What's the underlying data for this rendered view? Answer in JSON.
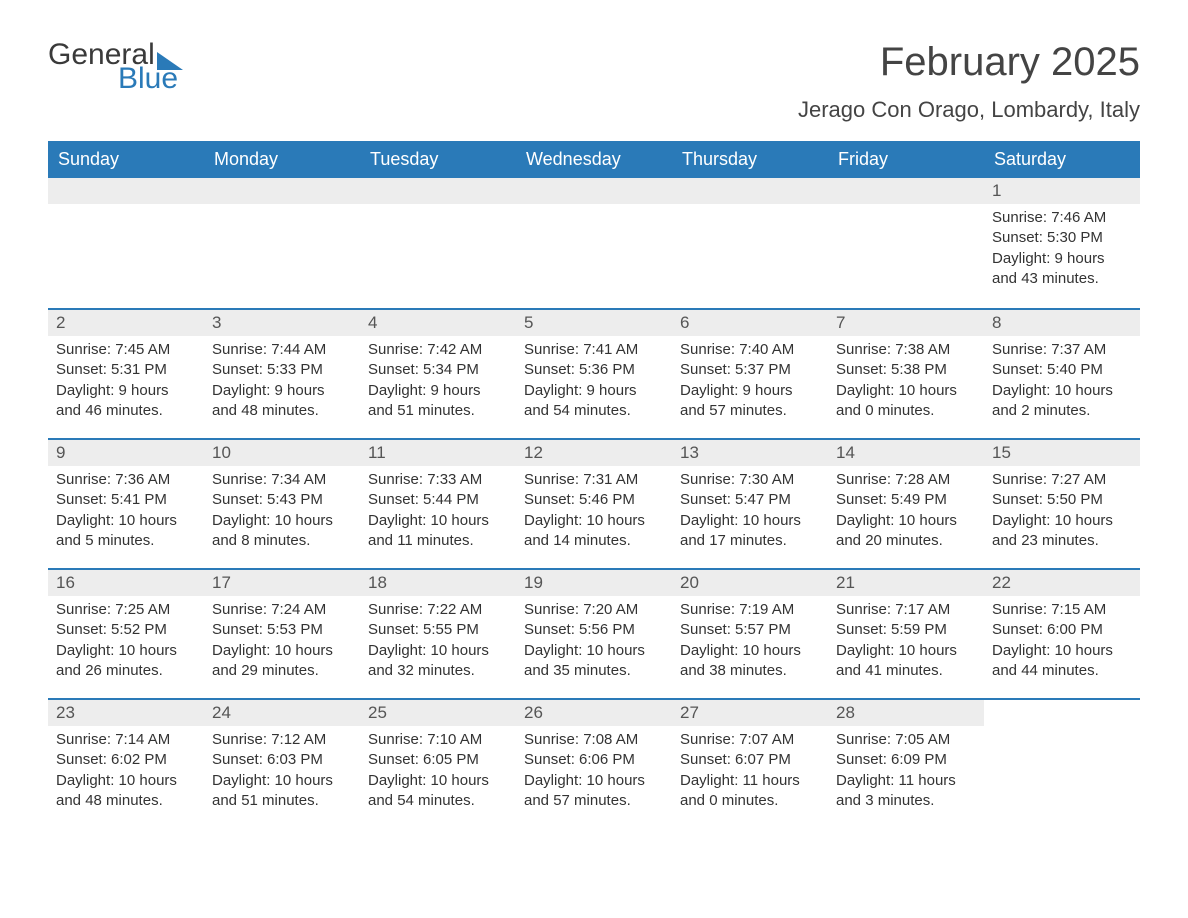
{
  "brand": {
    "general": "General",
    "blue": "Blue",
    "flag_color": "#2a7ab8"
  },
  "title": "February 2025",
  "location": "Jerago Con Orago, Lombardy, Italy",
  "colors": {
    "header_bg": "#2a7ab8",
    "header_text": "#ffffff",
    "daynum_bg": "#ededed",
    "week_border": "#2a7ab8",
    "text": "#333333",
    "title_text": "#444444"
  },
  "dayNames": [
    "Sunday",
    "Monday",
    "Tuesday",
    "Wednesday",
    "Thursday",
    "Friday",
    "Saturday"
  ],
  "layout": {
    "first_weekday_index": 6,
    "num_days": 28
  },
  "labels": {
    "sunrise": "Sunrise",
    "sunset": "Sunset",
    "daylight": "Daylight"
  },
  "days": [
    {
      "n": 1,
      "sunrise": "7:46 AM",
      "sunset": "5:30 PM",
      "daylight": "9 hours and 43 minutes."
    },
    {
      "n": 2,
      "sunrise": "7:45 AM",
      "sunset": "5:31 PM",
      "daylight": "9 hours and 46 minutes."
    },
    {
      "n": 3,
      "sunrise": "7:44 AM",
      "sunset": "5:33 PM",
      "daylight": "9 hours and 48 minutes."
    },
    {
      "n": 4,
      "sunrise": "7:42 AM",
      "sunset": "5:34 PM",
      "daylight": "9 hours and 51 minutes."
    },
    {
      "n": 5,
      "sunrise": "7:41 AM",
      "sunset": "5:36 PM",
      "daylight": "9 hours and 54 minutes."
    },
    {
      "n": 6,
      "sunrise": "7:40 AM",
      "sunset": "5:37 PM",
      "daylight": "9 hours and 57 minutes."
    },
    {
      "n": 7,
      "sunrise": "7:38 AM",
      "sunset": "5:38 PM",
      "daylight": "10 hours and 0 minutes."
    },
    {
      "n": 8,
      "sunrise": "7:37 AM",
      "sunset": "5:40 PM",
      "daylight": "10 hours and 2 minutes."
    },
    {
      "n": 9,
      "sunrise": "7:36 AM",
      "sunset": "5:41 PM",
      "daylight": "10 hours and 5 minutes."
    },
    {
      "n": 10,
      "sunrise": "7:34 AM",
      "sunset": "5:43 PM",
      "daylight": "10 hours and 8 minutes."
    },
    {
      "n": 11,
      "sunrise": "7:33 AM",
      "sunset": "5:44 PM",
      "daylight": "10 hours and 11 minutes."
    },
    {
      "n": 12,
      "sunrise": "7:31 AM",
      "sunset": "5:46 PM",
      "daylight": "10 hours and 14 minutes."
    },
    {
      "n": 13,
      "sunrise": "7:30 AM",
      "sunset": "5:47 PM",
      "daylight": "10 hours and 17 minutes."
    },
    {
      "n": 14,
      "sunrise": "7:28 AM",
      "sunset": "5:49 PM",
      "daylight": "10 hours and 20 minutes."
    },
    {
      "n": 15,
      "sunrise": "7:27 AM",
      "sunset": "5:50 PM",
      "daylight": "10 hours and 23 minutes."
    },
    {
      "n": 16,
      "sunrise": "7:25 AM",
      "sunset": "5:52 PM",
      "daylight": "10 hours and 26 minutes."
    },
    {
      "n": 17,
      "sunrise": "7:24 AM",
      "sunset": "5:53 PM",
      "daylight": "10 hours and 29 minutes."
    },
    {
      "n": 18,
      "sunrise": "7:22 AM",
      "sunset": "5:55 PM",
      "daylight": "10 hours and 32 minutes."
    },
    {
      "n": 19,
      "sunrise": "7:20 AM",
      "sunset": "5:56 PM",
      "daylight": "10 hours and 35 minutes."
    },
    {
      "n": 20,
      "sunrise": "7:19 AM",
      "sunset": "5:57 PM",
      "daylight": "10 hours and 38 minutes."
    },
    {
      "n": 21,
      "sunrise": "7:17 AM",
      "sunset": "5:59 PM",
      "daylight": "10 hours and 41 minutes."
    },
    {
      "n": 22,
      "sunrise": "7:15 AM",
      "sunset": "6:00 PM",
      "daylight": "10 hours and 44 minutes."
    },
    {
      "n": 23,
      "sunrise": "7:14 AM",
      "sunset": "6:02 PM",
      "daylight": "10 hours and 48 minutes."
    },
    {
      "n": 24,
      "sunrise": "7:12 AM",
      "sunset": "6:03 PM",
      "daylight": "10 hours and 51 minutes."
    },
    {
      "n": 25,
      "sunrise": "7:10 AM",
      "sunset": "6:05 PM",
      "daylight": "10 hours and 54 minutes."
    },
    {
      "n": 26,
      "sunrise": "7:08 AM",
      "sunset": "6:06 PM",
      "daylight": "10 hours and 57 minutes."
    },
    {
      "n": 27,
      "sunrise": "7:07 AM",
      "sunset": "6:07 PM",
      "daylight": "11 hours and 0 minutes."
    },
    {
      "n": 28,
      "sunrise": "7:05 AM",
      "sunset": "6:09 PM",
      "daylight": "11 hours and 3 minutes."
    }
  ]
}
